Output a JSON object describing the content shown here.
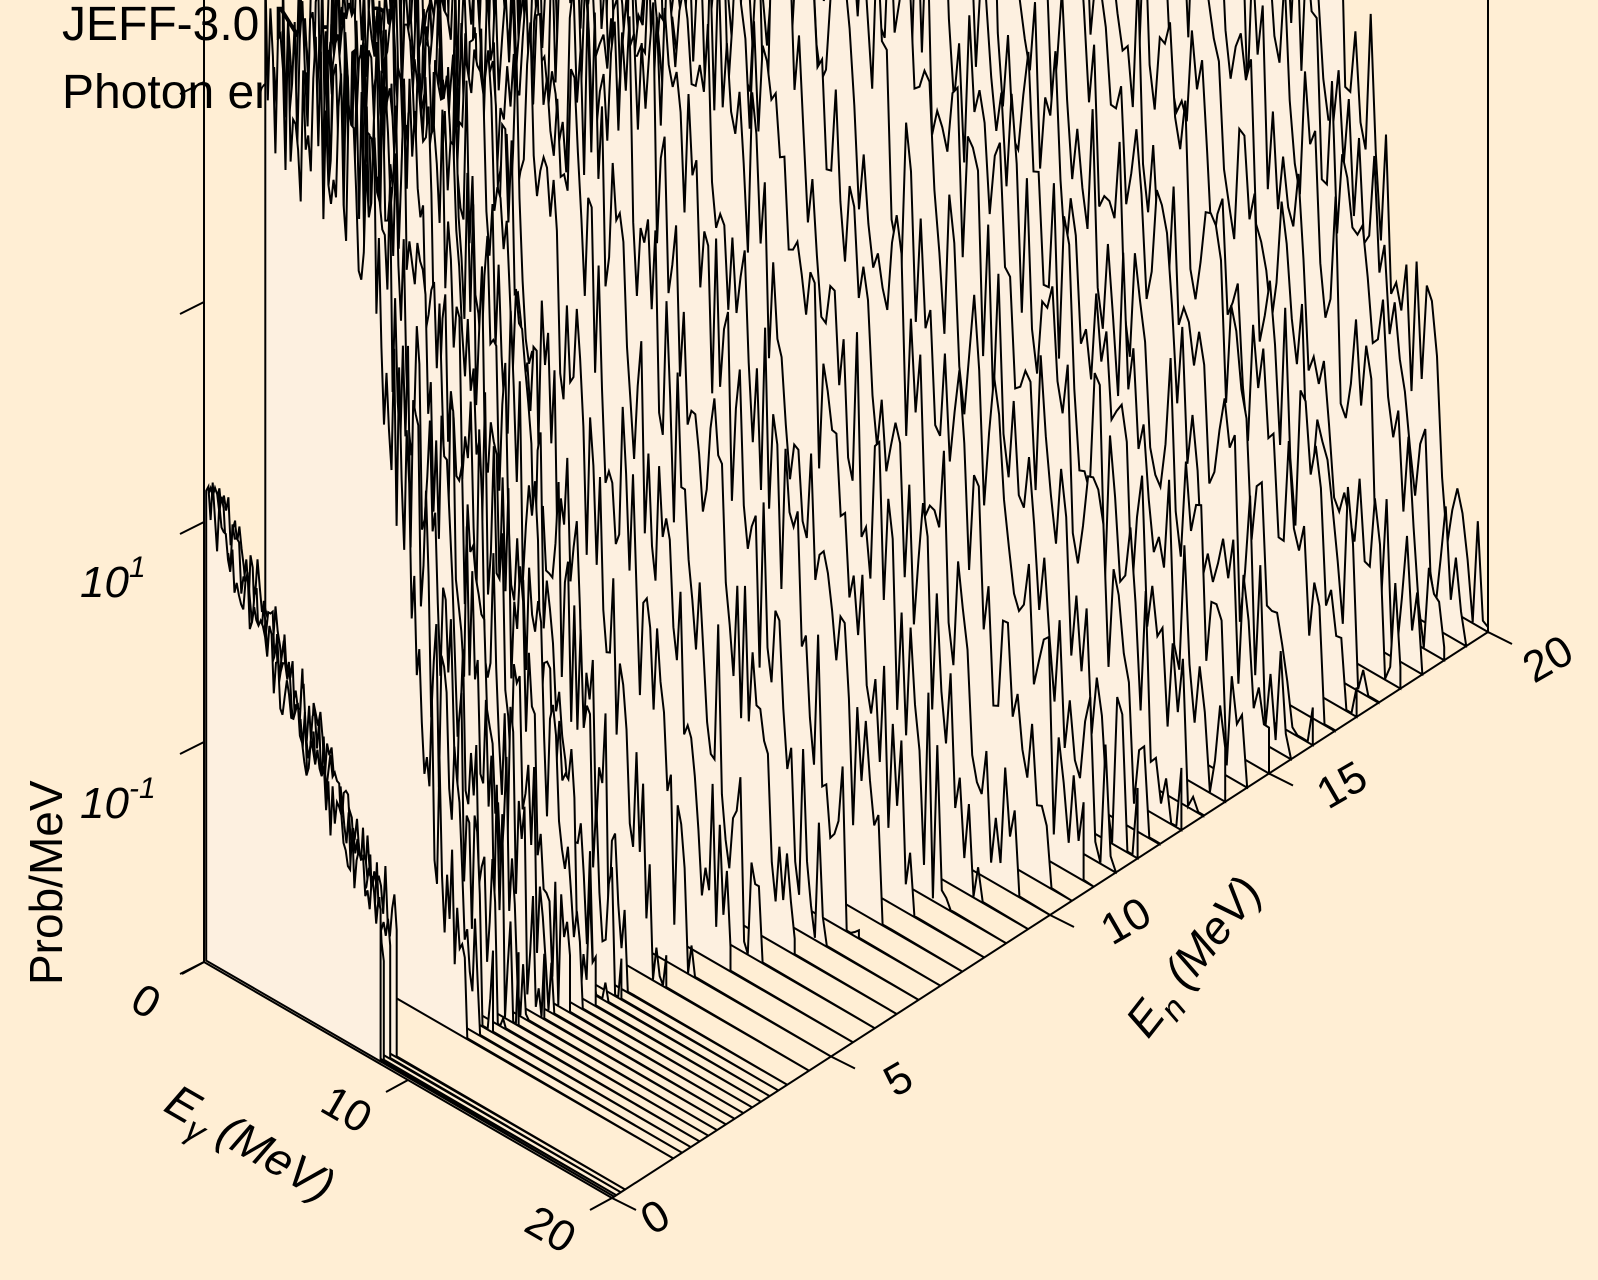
{
  "chart_data": {
    "type": "3d-waterfall",
    "title": "JEFF-3.0 NI-59",
    "subtitle": "Photon emission for nonelastic",
    "x_axis": {
      "label_main": "E",
      "label_sub": "γ",
      "label_unit": " (MeV)",
      "ticks": [
        "0",
        "10",
        "20"
      ],
      "range": [
        0,
        20
      ]
    },
    "y_axis": {
      "label_main": "E",
      "label_sub": "n",
      "label_unit": " (MeV)",
      "ticks": [
        "0",
        "5",
        "10",
        "15",
        "20"
      ],
      "range": [
        0,
        20
      ]
    },
    "z_axis": {
      "label": "Prob/MeV",
      "scale": "log",
      "ticks": [
        {
          "base": "10",
          "exp": "1"
        },
        {
          "base": "10",
          "exp": "-1"
        }
      ],
      "tick_values": [
        10,
        0.1
      ],
      "bottom_label": "0"
    },
    "incident_energies_MeV": [
      0.05,
      0.1,
      0.2,
      0.3,
      1.4,
      1.6,
      1.8,
      2.0,
      2.2,
      2.4,
      2.6,
      2.8,
      3.0,
      3.2,
      3.4,
      3.6,
      3.8,
      4.0,
      4.5,
      5.0,
      5.5,
      6.0,
      6.5,
      7.0,
      7.5,
      8.0,
      8.5,
      9.0,
      9.5,
      10.0,
      10.5,
      11.0,
      11.5,
      12.0,
      12.5,
      13.0,
      13.5,
      14.0,
      14.5,
      15.0,
      15.5,
      16.0,
      16.5,
      17.0,
      17.5,
      18.0,
      18.5,
      19.0,
      19.5,
      20.0
    ],
    "colors": {
      "background": "#ffeed4",
      "fill": "#fdf0e0",
      "line": "#000000"
    }
  }
}
